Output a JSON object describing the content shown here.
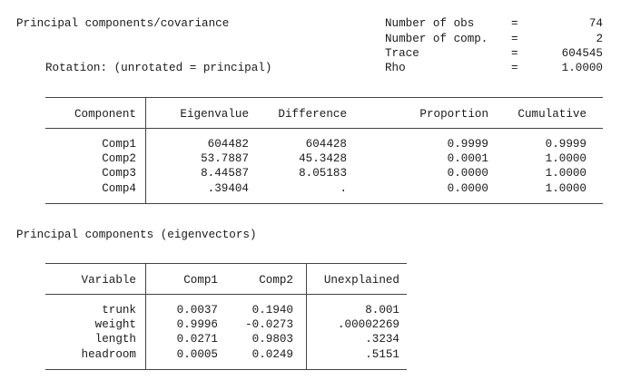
{
  "header": {
    "title": "Principal components/covariance",
    "rotation": "Rotation: (unrotated = principal)",
    "stats": [
      {
        "label": "Number of obs",
        "eq": "=",
        "value": "74"
      },
      {
        "label": "Number of comp.",
        "eq": "=",
        "value": "2"
      },
      {
        "label": "Trace",
        "eq": "=",
        "value": "604545"
      },
      {
        "label": "Rho",
        "eq": "=",
        "value": "1.0000"
      }
    ]
  },
  "eigen": {
    "columns": [
      "Component",
      "Eigenvalue",
      "Difference",
      "Proportion",
      "Cumulative"
    ],
    "rows": [
      {
        "component": "Comp1",
        "eigenvalue": "604482",
        "difference": "604428",
        "proportion": "0.9999",
        "cumulative": "0.9999"
      },
      {
        "component": "Comp2",
        "eigenvalue": "53.7887",
        "difference": "45.3428",
        "proportion": "0.0001",
        "cumulative": "1.0000"
      },
      {
        "component": "Comp3",
        "eigenvalue": "8.44587",
        "difference": "8.05183",
        "proportion": "0.0000",
        "cumulative": "1.0000"
      },
      {
        "component": "Comp4",
        "eigenvalue": ".39404",
        "difference": ".",
        "proportion": "0.0000",
        "cumulative": "1.0000"
      }
    ]
  },
  "vectors": {
    "title": "Principal components (eigenvectors)",
    "columns": [
      "Variable",
      "Comp1",
      "Comp2",
      "Unexplained"
    ],
    "rows": [
      {
        "variable": "trunk",
        "comp1": "0.0037",
        "comp2": "0.1940",
        "unexplained": "8.001"
      },
      {
        "variable": "weight",
        "comp1": "0.9996",
        "comp2": "-0.0273",
        "unexplained": ".00002269"
      },
      {
        "variable": "length",
        "comp1": "0.0271",
        "comp2": "0.9803",
        "unexplained": ".3234"
      },
      {
        "variable": "headroom",
        "comp1": "0.0005",
        "comp2": "0.0249",
        "unexplained": ".5151"
      }
    ]
  }
}
